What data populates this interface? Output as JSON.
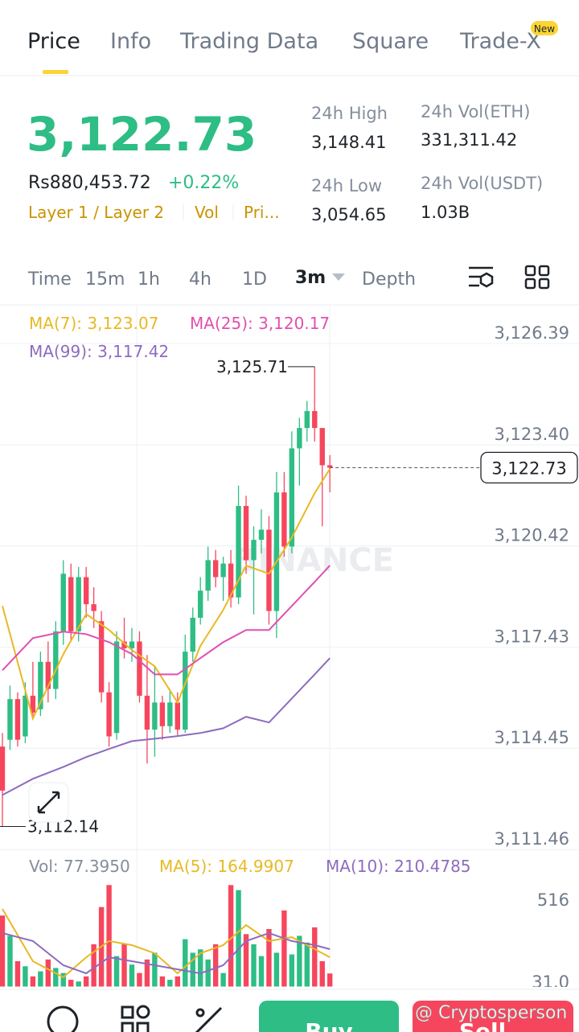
{
  "tabs": [
    "Price",
    "Info",
    "Trading Data",
    "Square",
    "Trade-X"
  ],
  "tab_badge": "New",
  "ticker": {
    "price": "3,122.73",
    "fiat": "Rs880,453.72",
    "change": "+0.22%",
    "tags": [
      "Layer 1 / Layer 2",
      "Vol",
      "Pri..."
    ],
    "stats": [
      {
        "label": "24h High",
        "value": "3,148.41"
      },
      {
        "label": "24h Vol(ETH)",
        "value": "331,311.42"
      },
      {
        "label": "24h Low",
        "value": "3,054.65"
      },
      {
        "label": "24h Vol(USDT)",
        "value": "1.03B"
      }
    ]
  },
  "intervals": [
    "Time",
    "15m",
    "1h",
    "4h",
    "1D",
    "3m",
    "Depth"
  ],
  "chart_data": {
    "type": "candlestick",
    "watermark": "BINANCE",
    "up_color": "#2ebd85",
    "down_color": "#f6465d",
    "grid": true,
    "ylim": [
      3111.37,
      3127.51
    ],
    "yticks": [
      {
        "value": 3126.39,
        "label": "3,126.39"
      },
      {
        "value": 3123.4,
        "label": "3,123.40"
      },
      {
        "value": 3120.42,
        "label": "3,120.42"
      },
      {
        "value": 3117.43,
        "label": "3,117.43"
      },
      {
        "value": 3114.45,
        "label": "3,114.45"
      },
      {
        "value": 3111.46,
        "label": "3,111.46"
      }
    ],
    "open": [
      3114.5,
      3114.7,
      3115.9,
      3114.8,
      3116.0,
      3115.6,
      3117.0,
      3116.2,
      3117.9,
      3119.5,
      3117.9,
      3119.5,
      3118.7,
      3118.2,
      3116.1,
      3114.9,
      3117.6,
      3117.4,
      3117.6,
      3116.0,
      3115.0,
      3115.8,
      3115.1,
      3115.8,
      3115.0,
      3117.3,
      3118.3,
      3119.1,
      3120.0,
      3119.5,
      3119.9,
      3118.9,
      3121.6,
      3120.0,
      3120.6,
      3120.9,
      3118.5,
      3122.0,
      3120.4,
      3123.3,
      3123.9,
      3124.4,
      3123.9,
      3122.8
    ],
    "high": [
      3114.9,
      3116.3,
      3116.1,
      3116.4,
      3117.0,
      3117.3,
      3117.6,
      3118.2,
      3120.0,
      3119.9,
      3119.8,
      3119.8,
      3119.2,
      3118.5,
      3116.4,
      3117.9,
      3118.3,
      3118.0,
      3117.9,
      3117.2,
      3116.9,
      3116.0,
      3116.2,
      3116.1,
      3117.8,
      3118.6,
      3119.5,
      3120.4,
      3120.3,
      3120.1,
      3120.3,
      3122.2,
      3121.9,
      3121.0,
      3121.5,
      3121.3,
      3122.6,
      3122.6,
      3123.8,
      3124.2,
      3124.7,
      3125.71,
      3123.9,
      3123.1
    ],
    "low": [
      3112.14,
      3114.4,
      3114.5,
      3114.6,
      3115.3,
      3115.4,
      3115.8,
      3115.9,
      3117.5,
      3117.6,
      3117.6,
      3118.3,
      3118.0,
      3115.8,
      3114.5,
      3114.7,
      3117.1,
      3117.0,
      3115.8,
      3114.0,
      3114.2,
      3114.7,
      3114.9,
      3114.8,
      3114.9,
      3117.0,
      3118.1,
      3118.8,
      3119.2,
      3118.8,
      3118.6,
      3118.7,
      3119.6,
      3118.4,
      3120.2,
      3118.1,
      3117.7,
      3120.1,
      3120.2,
      3122.2,
      3123.5,
      3123.5,
      3121.0,
      3122.0
    ],
    "close": [
      3113.2,
      3115.9,
      3114.7,
      3116.0,
      3115.5,
      3117.0,
      3116.2,
      3117.9,
      3119.6,
      3117.9,
      3119.5,
      3118.7,
      3118.5,
      3116.1,
      3114.8,
      3117.6,
      3117.4,
      3117.6,
      3116.0,
      3115.0,
      3115.8,
      3115.1,
      3115.8,
      3115.0,
      3117.3,
      3118.3,
      3119.1,
      3120.0,
      3119.5,
      3119.9,
      3118.9,
      3121.6,
      3120.0,
      3120.6,
      3120.9,
      3118.5,
      3122.0,
      3120.4,
      3123.3,
      3123.9,
      3124.4,
      3123.9,
      3122.8,
      3122.73
    ],
    "ma_lines": [
      {
        "label": "MA(7): 3,123.07",
        "color": "#e8b923",
        "x": [
          0,
          4,
          8,
          11,
          14,
          17,
          20,
          23,
          26,
          29,
          32,
          35,
          38,
          41,
          43
        ],
        "values": [
          3118.65,
          3115.33,
          3117.23,
          3118.41,
          3117.94,
          3117.35,
          3116.87,
          3115.8,
          3117.47,
          3118.53,
          3119.84,
          3119.6,
          3120.67,
          3121.98,
          3122.69
        ]
      },
      {
        "label": "MA(25): 3,120.17",
        "color": "#e050b0",
        "x": [
          0,
          4,
          8,
          11,
          14,
          17,
          20,
          23,
          26,
          29,
          32,
          35,
          38,
          41,
          43
        ],
        "values": [
          3116.75,
          3117.7,
          3117.89,
          3117.82,
          3117.58,
          3117.23,
          3116.63,
          3116.63,
          3117.11,
          3117.58,
          3117.94,
          3117.94,
          3118.65,
          3119.36,
          3119.84
        ]
      },
      {
        "label": "MA(99): 3,117.42",
        "color": "#8e6bbf",
        "x": [
          0,
          4,
          8,
          11,
          14,
          17,
          20,
          23,
          26,
          29,
          32,
          35,
          38,
          41,
          43
        ],
        "values": [
          3113.07,
          3113.55,
          3113.9,
          3114.19,
          3114.43,
          3114.66,
          3114.73,
          3114.81,
          3114.9,
          3115.04,
          3115.38,
          3115.21,
          3115.92,
          3116.63,
          3117.11
        ]
      }
    ],
    "high_note": {
      "value": 3125.71,
      "label": "3,125.71"
    },
    "low_note": {
      "value": 3112.14,
      "label": "3,112.14"
    },
    "current": {
      "value": 3122.73,
      "label": "3,122.73"
    },
    "volume": {
      "ylim": [
        0,
        768
      ],
      "yticks": [
        516,
        {
          "value": 31,
          "label": "31.0"
        }
      ],
      "values": [
        420,
        300,
        150,
        120,
        60,
        90,
        160,
        110,
        80,
        40,
        30,
        60,
        250,
        470,
        600,
        180,
        250,
        130,
        80,
        160,
        200,
        60,
        40,
        60,
        280,
        200,
        220,
        160,
        250,
        80,
        600,
        570,
        310,
        250,
        180,
        340,
        200,
        450,
        190,
        300,
        260,
        350,
        150,
        77.395
      ],
      "legend": {
        "label": "Vol: 77.3950",
        "color": "#848e9c"
      },
      "ma_lines": [
        {
          "label": "MA(5): 164.9907",
          "color": "#e8b923",
          "x": [
            0,
            4,
            8,
            11,
            14,
            17,
            20,
            23,
            26,
            29,
            32,
            35,
            38,
            41,
            43
          ],
          "values": [
            459,
            150,
            55,
            173,
            269,
            245,
            197,
            78,
            197,
            245,
            364,
            269,
            292,
            221,
            173
          ]
        },
        {
          "label": "MA(10): 210.4785",
          "color": "#8e6bbf",
          "x": [
            0,
            4,
            8,
            11,
            14,
            17,
            20,
            23,
            26,
            29,
            32,
            35,
            38,
            41,
            43
          ],
          "values": [
            316,
            269,
            126,
            78,
            173,
            150,
            126,
            102,
            78,
            126,
            269,
            316,
            269,
            245,
            221
          ]
        }
      ]
    }
  },
  "bottom_bar": {
    "buy": "Buy",
    "sell": "Sell",
    "watermark": "@ Cryptosperson"
  }
}
